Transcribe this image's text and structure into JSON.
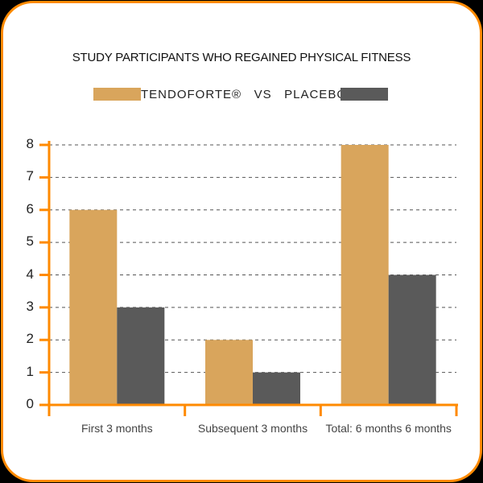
{
  "chart_data": {
    "type": "bar",
    "title": "STUDY PARTICIPANTS WHO REGAINED PHYSICAL FITNESS",
    "categories": [
      "First 3 months",
      "Subsequent 3 months",
      "Total: 6 months 6 months"
    ],
    "series": [
      {
        "name": "TENDOFORTE®",
        "color": "#d9a55c",
        "values": [
          6,
          2,
          8
        ]
      },
      {
        "name": "PLACEBO",
        "color": "#5a5a5a",
        "values": [
          3,
          1,
          4
        ]
      }
    ],
    "legend_text": "TENDOFORTE®   VS   PLACEBO",
    "xlabel": "",
    "ylabel": "",
    "ylim": [
      0,
      8
    ],
    "yticks": [
      0,
      1,
      2,
      3,
      4,
      5,
      6,
      7,
      8
    ],
    "grid": "dashed horizontal",
    "legend_position": "top"
  },
  "colors": {
    "accent": "#ff8a00",
    "tendoforte": "#d9a55c",
    "placebo": "#5a5a5a",
    "grid": "#555555"
  }
}
